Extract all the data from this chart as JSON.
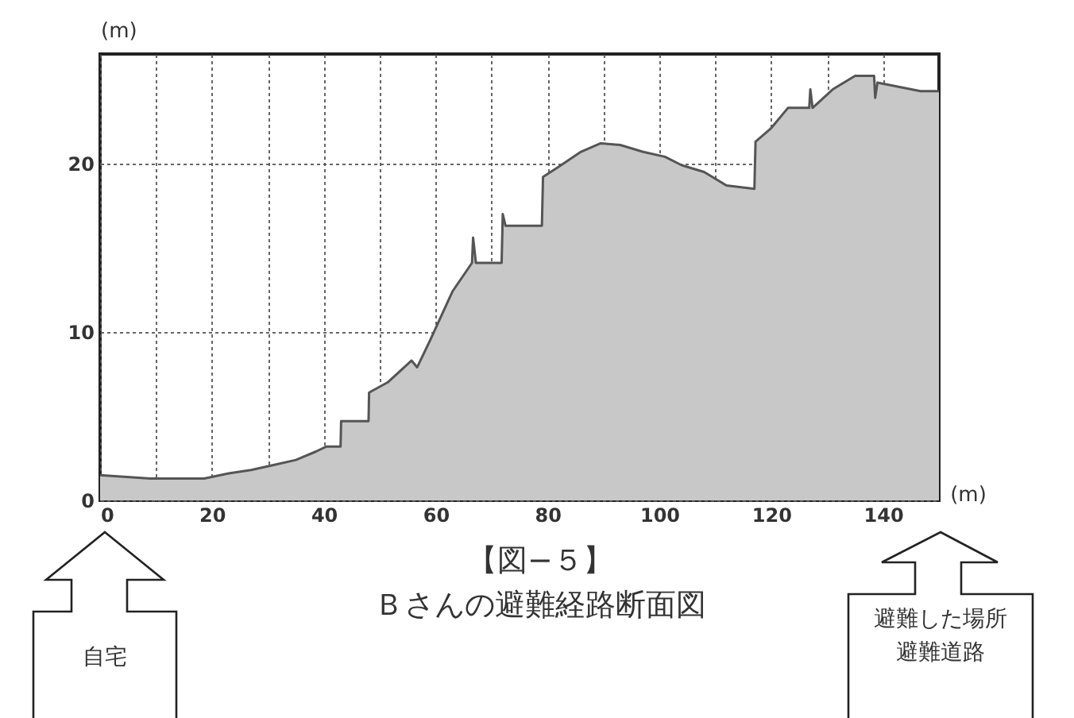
{
  "chart_data": {
    "type": "area",
    "title": "【図−５】",
    "subtitle": "Ｂさんの避難経路断面図",
    "xlabel": "(m)",
    "ylabel": "(m)",
    "x": [
      0,
      9,
      18.6,
      23,
      27,
      31,
      35,
      38.6,
      40.5,
      43,
      43.1,
      48,
      48.1,
      51.4,
      55.7,
      56.7,
      59,
      63,
      66.5,
      66.7,
      67.2,
      71.8,
      72,
      72.5,
      79,
      79.2,
      82,
      86,
      89.5,
      93,
      97,
      101,
      104,
      108,
      112,
      117,
      117.2,
      120,
      123,
      126.8,
      127,
      127.4,
      131,
      135,
      138.4,
      138.6,
      139,
      146.7,
      150
    ],
    "series": [
      {
        "color": "#c8c8c8",
        "values": [
          1.5,
          1.3,
          1.3,
          1.6,
          1.8,
          2.1,
          2.4,
          2.9,
          3.2,
          3.2,
          4.7,
          4.7,
          6.4,
          7,
          8.3,
          7.9,
          9.5,
          12.4,
          14.1,
          15.6,
          14.1,
          14.1,
          17,
          16.3,
          16.3,
          19.2,
          19.8,
          20.7,
          21.2,
          21.1,
          20.7,
          20.4,
          19.9,
          19.5,
          18.7,
          18.5,
          21.3,
          22.1,
          23.3,
          23.3,
          24.4,
          23.3,
          24.4,
          25.2,
          25.2,
          23.9,
          24.8,
          24.3,
          24.3
        ]
      }
    ],
    "xlim": [
      0,
      150
    ],
    "ylim": [
      0,
      26.5
    ],
    "xticks": [
      0,
      {
        "value": 10,
        "label": null
      },
      20,
      {
        "value": 30,
        "label": null
      },
      40,
      {
        "value": 50,
        "label": null
      },
      60,
      {
        "value": 70,
        "label": null
      },
      80,
      {
        "value": 90,
        "label": null
      },
      100,
      {
        "value": 110,
        "label": null
      },
      120,
      {
        "value": 130,
        "label": null
      },
      140
    ],
    "yticks": [
      0,
      10,
      20
    ],
    "grid": true,
    "line_style": "solid",
    "annotations": [
      "自宅",
      "避難した場所",
      "避難道路"
    ]
  }
}
